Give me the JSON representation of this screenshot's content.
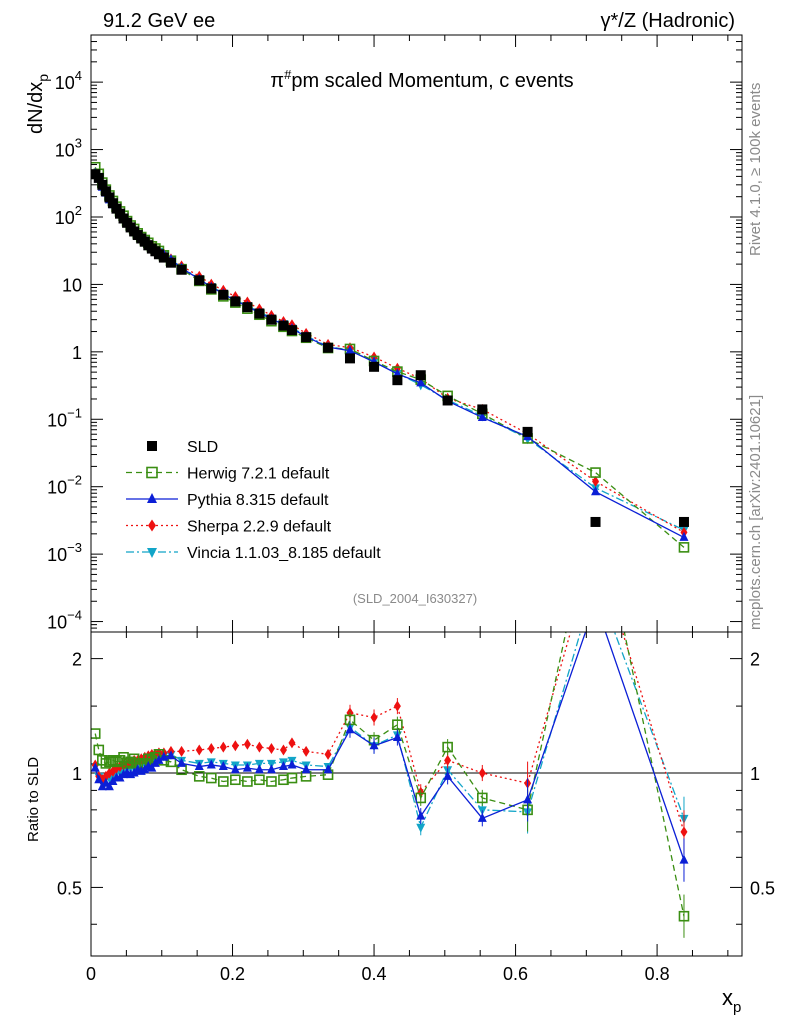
{
  "header": {
    "left": "91.2 GeV ee",
    "right": "γ*/Z (Hadronic)"
  },
  "side_labels": {
    "rivet": "Rivet 4.1.0, ≥ 100k events",
    "mcplots": "mcplots.cern.ch [arXiv:2401.10621]"
  },
  "chart_data": {
    "type": "scatter",
    "title": "π#pm scaled Momentum, c events",
    "title_parts": {
      "pre": "π",
      "sup": "#",
      "post": "pm scaled Momentum, c events"
    },
    "analysis_id": "(SLD_2004_I630327)",
    "xlabel": "x_p",
    "xlabel_parts": {
      "base": "x",
      "sub": "p"
    },
    "ylabel": "dN/dx_p",
    "ylabel_parts": {
      "base": "dN/dx",
      "sub": "p"
    },
    "ratio_ylabel": "Ratio to SLD",
    "xlim": [
      0,
      0.92
    ],
    "ylim": [
      7e-05,
      50000
    ],
    "yscale": "log",
    "ratio_ylim": [
      0.33,
      2.35
    ],
    "ratio_yscale": "log",
    "x_ticks": [
      {
        "v": 0,
        "label": "0"
      },
      {
        "v": 0.2,
        "label": "0.2"
      },
      {
        "v": 0.4,
        "label": "0.4"
      },
      {
        "v": 0.6,
        "label": "0.6"
      },
      {
        "v": 0.8,
        "label": "0.8"
      }
    ],
    "y_ticks": [
      {
        "v": 0.0001,
        "base": "10",
        "exp": "−4"
      },
      {
        "v": 0.001,
        "base": "10",
        "exp": "−3"
      },
      {
        "v": 0.01,
        "base": "10",
        "exp": "−2"
      },
      {
        "v": 0.1,
        "base": "10",
        "exp": "−1"
      },
      {
        "v": 1,
        "base": "1",
        "exp": ""
      },
      {
        "v": 10,
        "base": "10",
        "exp": ""
      },
      {
        "v": 100,
        "base": "10",
        "exp": "2"
      },
      {
        "v": 1000,
        "base": "10",
        "exp": "3"
      },
      {
        "v": 10000,
        "base": "10",
        "exp": "4"
      }
    ],
    "ratio_ticks": [
      {
        "v": 0.5,
        "label": "0.5"
      },
      {
        "v": 1,
        "label": "1"
      },
      {
        "v": 2,
        "label": "2"
      }
    ],
    "x": [
      0.006,
      0.011,
      0.016,
      0.021,
      0.026,
      0.031,
      0.036,
      0.041,
      0.046,
      0.051,
      0.056,
      0.061,
      0.066,
      0.071,
      0.076,
      0.081,
      0.086,
      0.091,
      0.096,
      0.103,
      0.113,
      0.128,
      0.153,
      0.17,
      0.187,
      0.204,
      0.221,
      0.238,
      0.255,
      0.272,
      0.284,
      0.304,
      0.335,
      0.366,
      0.4,
      0.433,
      0.466,
      0.504,
      0.553,
      0.617,
      0.713,
      0.838
    ],
    "legend": [
      {
        "label": "SLD",
        "marker": "square-filled",
        "color": "#000000",
        "line": "none"
      },
      {
        "label": "Herwig 7.2.1 default",
        "marker": "square-open",
        "color": "#3a8e12",
        "line": "dashed"
      },
      {
        "label": "Pythia 8.315 default",
        "marker": "triangle-up",
        "color": "#0b1fd6",
        "line": "solid"
      },
      {
        "label": "Sherpa 2.2.9 default",
        "marker": "diamond",
        "color": "#ee1111",
        "line": "dotted"
      },
      {
        "label": "Vincia 1.1.03_8.185 default",
        "marker": "triangle-down",
        "color": "#12a5c8",
        "line": "dashdot"
      }
    ],
    "series": [
      {
        "name": "SLD",
        "values": [
          430,
          380,
          300,
          240,
          195,
          160,
          133,
          112,
          95,
          82,
          70,
          61,
          54,
          48,
          43,
          38,
          34,
          31,
          28,
          25,
          21,
          16.5,
          11.5,
          8.7,
          7.0,
          5.6,
          4.6,
          3.7,
          3.0,
          2.45,
          2.1,
          1.65,
          1.15,
          0.8,
          0.6,
          0.38,
          0.45,
          0.19,
          0.14,
          0.065,
          0.003,
          0.003
        ]
      },
      {
        "name": "Herwig 7.2.1 default",
        "ratio": [
          1.27,
          1.15,
          1.08,
          1.06,
          1.07,
          1.08,
          1.07,
          1.08,
          1.1,
          1.06,
          1.07,
          1.09,
          1.06,
          1.05,
          1.06,
          1.09,
          1.08,
          1.1,
          1.12,
          1.08,
          1.07,
          1.02,
          0.98,
          0.97,
          0.95,
          0.96,
          0.95,
          0.96,
          0.95,
          0.96,
          0.97,
          0.98,
          0.99,
          1.38,
          1.22,
          1.34,
          0.86,
          1.17,
          0.86,
          0.8,
          5.4,
          0.42
        ]
      },
      {
        "name": "Pythia 8.315 default",
        "ratio": [
          1.03,
          0.96,
          0.92,
          0.94,
          0.92,
          0.95,
          0.97,
          0.97,
          0.99,
          1.0,
          0.99,
          1.0,
          1.02,
          1.01,
          1.02,
          1.04,
          1.03,
          1.06,
          1.08,
          1.1,
          1.11,
          1.06,
          1.04,
          1.05,
          1.04,
          1.02,
          1.03,
          1.02,
          1.02,
          1.04,
          1.05,
          1.02,
          1.02,
          1.3,
          1.18,
          1.24,
          0.77,
          0.98,
          0.76,
          0.85,
          2.8,
          0.59
        ]
      },
      {
        "name": "Sherpa 2.2.9 default",
        "ratio": [
          1.05,
          0.98,
          0.96,
          0.98,
          1.0,
          1.01,
          1.03,
          1.04,
          1.05,
          1.05,
          1.07,
          1.08,
          1.08,
          1.09,
          1.1,
          1.11,
          1.12,
          1.12,
          1.13,
          1.13,
          1.14,
          1.14,
          1.15,
          1.16,
          1.17,
          1.18,
          1.19,
          1.17,
          1.16,
          1.15,
          1.2,
          1.14,
          1.12,
          1.44,
          1.4,
          1.5,
          0.89,
          1.08,
          1.0,
          0.94,
          4.0,
          0.7
        ]
      },
      {
        "name": "Vincia 1.1.03_8.185 default",
        "ratio": [
          1.04,
          0.98,
          0.95,
          0.97,
          0.97,
          0.99,
          1.0,
          1.01,
          1.02,
          1.03,
          1.03,
          1.04,
          1.04,
          1.05,
          1.06,
          1.07,
          1.07,
          1.08,
          1.1,
          1.11,
          1.12,
          1.08,
          1.06,
          1.07,
          1.06,
          1.05,
          1.05,
          1.06,
          1.06,
          1.07,
          1.08,
          1.05,
          1.04,
          1.32,
          1.18,
          1.26,
          0.72,
          1.02,
          0.8,
          0.79,
          3.2,
          0.76
        ]
      }
    ]
  }
}
